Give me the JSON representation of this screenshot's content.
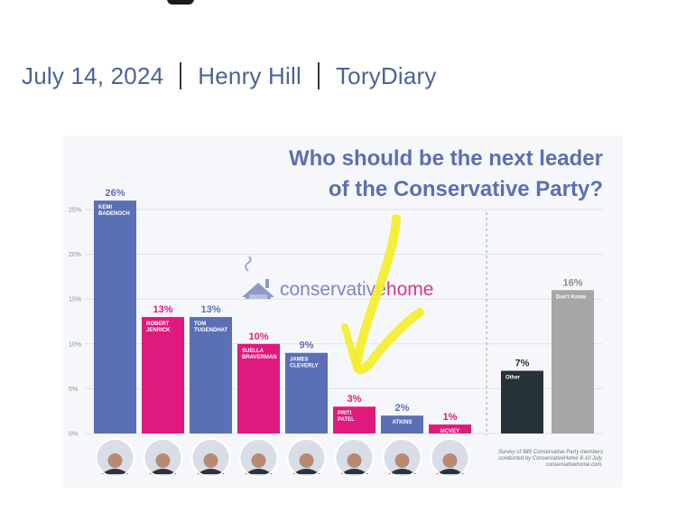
{
  "article": {
    "date": "July 14, 2024",
    "author": "Henry Hill",
    "section": "ToryDiary"
  },
  "colors": {
    "blue": "#5b6fb7",
    "pink": "#e0197d",
    "dark": "#253238",
    "grey": "#a6a6a6",
    "highlight": "#f2ee2a",
    "meta_text": "#4a6395"
  },
  "logo": {
    "part1": "conservative",
    "part2": "home",
    "icon": "house-icon"
  },
  "chart_data": {
    "type": "bar",
    "title": [
      "Who should be the next leader",
      "of the Conservative Party?"
    ],
    "ylim": [
      0,
      25
    ],
    "yticks": [
      "0%",
      "5%",
      "10%",
      "15%",
      "20%",
      "25%"
    ],
    "ytick_values": [
      0,
      5,
      10,
      15,
      20,
      25
    ],
    "grid": true,
    "candidates": [
      {
        "name": [
          "KEMI",
          "BADENOCH"
        ],
        "value": 26,
        "label": "26%",
        "color": "blue"
      },
      {
        "name": [
          "ROBERT",
          "JENRICK"
        ],
        "value": 13,
        "label": "13%",
        "color": "pink"
      },
      {
        "name": [
          "TOM",
          "TUGENDHAT"
        ],
        "value": 13,
        "label": "13%",
        "color": "blue"
      },
      {
        "name": [
          "SUELLA",
          "BRAVERMAN"
        ],
        "value": 10,
        "label": "10%",
        "color": "pink"
      },
      {
        "name": [
          "JAMES",
          "CLEVERLY"
        ],
        "value": 9,
        "label": "9%",
        "color": "blue"
      },
      {
        "name": [
          "PRITI",
          "PATEL"
        ],
        "value": 3,
        "label": "3%",
        "color": "pink"
      },
      {
        "name": [
          "ATKINS"
        ],
        "value": 2,
        "label": "2%",
        "color": "blue"
      },
      {
        "name": [
          "MCVEY"
        ],
        "value": 1,
        "label": "1%",
        "color": "pink"
      }
    ],
    "other": [
      {
        "name": [
          "Other"
        ],
        "value": 7,
        "label": "7%",
        "color": "dark"
      },
      {
        "name": [
          "Don't Know"
        ],
        "value": 16,
        "label": "16%",
        "color": "grey"
      }
    ],
    "source": [
      "Survey of 985 Conservative Party members",
      "conducted by ConservativeHome 8-10 July.",
      "conservativehome.com."
    ]
  }
}
